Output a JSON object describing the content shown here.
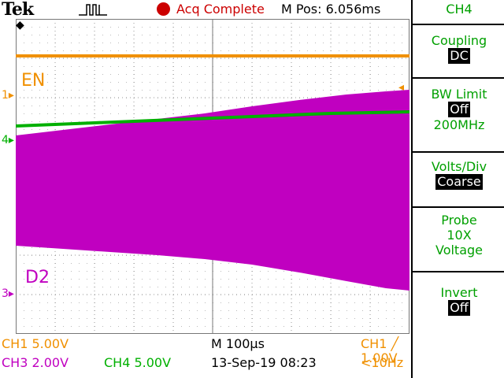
{
  "header": {
    "brand": "Tek",
    "status": "Acq Complete",
    "mpos": "M Pos: 6.056ms"
  },
  "waveform": {
    "ch1_label": "EN",
    "ch3_label": "D2",
    "markers": {
      "ch1": "1",
      "ch4": "4",
      "ch3": "3"
    }
  },
  "colors": {
    "ch1": "#f09000",
    "ch3": "#c000c0",
    "ch4": "#00b000",
    "menu": "#00a000"
  },
  "menu": {
    "title": "CH4",
    "coupling_label": "Coupling",
    "coupling_value": "DC",
    "bw_label": "BW Limit",
    "bw_value": "Off",
    "bw_freq": "200MHz",
    "volts_label": "Volts/Div",
    "volts_value": "Coarse",
    "probe_label": "Probe",
    "probe_value": "10X",
    "probe_type": "Voltage",
    "invert_label": "Invert",
    "invert_value": "Off"
  },
  "status_bar": {
    "ch1_scale": "CH1  5.00V",
    "ch3_scale": "CH3  2.00V",
    "ch4_scale": "CH4  5.00V",
    "timebase": "M 100µs",
    "date": "13-Sep-19 08:23",
    "trigger": "CH1 ╱ 1.00V",
    "freq": "<10Hz"
  }
}
